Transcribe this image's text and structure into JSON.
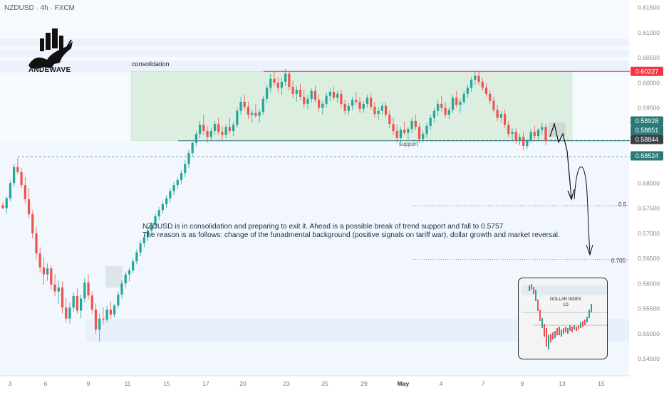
{
  "header": {
    "symbol": "NZDUSD · 4h · FXCM"
  },
  "logo": {
    "text": "ANDEWAVE"
  },
  "labels": {
    "consolidation": "consolidation",
    "support": "support",
    "fib_half": "0.5",
    "fib_705": "0.705"
  },
  "note": {
    "line1": "NZDUSD is in consolidation and preparing to exit it. Ahead is a possible break of trend support and fall to 0.5757",
    "line2": "The reason is as follows: change of the funadmental background (positive signals on tariff war), dollar growth and market reversal."
  },
  "inset": {
    "title_line1": "DOLLAR INDEX",
    "title_line2": "1D"
  },
  "colors": {
    "bull": "#26a69a",
    "bear": "#ef5350",
    "resistance": "#f23645",
    "support": "#2b7a78",
    "zone": "#c8e6c9",
    "band": "#d6e4f5"
  },
  "chart_data": {
    "type": "candlestick",
    "symbol": "NZDUSD",
    "timeframe": "4h",
    "x_ticks": [
      "3",
      "6",
      "9",
      "11",
      "15",
      "17",
      "20",
      "23",
      "25",
      "29",
      "May",
      "4",
      "7",
      "9",
      "13",
      "15"
    ],
    "y_ticks": [
      0.615,
      0.61,
      0.605,
      0.6,
      0.595,
      0.59,
      0.585,
      0.58,
      0.575,
      0.57,
      0.565,
      0.56,
      0.555,
      0.55,
      0.545
    ],
    "ylim": [
      0.5435,
      0.6168
    ],
    "price_tags": [
      {
        "value": "0.60227",
        "style": "resistance"
      },
      {
        "value": "0.58928",
        "style": "current"
      },
      {
        "value": "0.58851",
        "style": "current"
      },
      {
        "value": "0.58844",
        "style": "dark"
      },
      {
        "value": "0.58524",
        "style": "current"
      }
    ],
    "levels": {
      "resistance": 0.60227,
      "support": 0.58844,
      "dashed": [
        0.58851,
        0.58524
      ],
      "fib_0_5": 0.5755,
      "fib_0_705": 0.5648
    },
    "consolidation_zone": [
      0.58844,
      0.60227
    ],
    "target": 0.5757,
    "candles": [
      [
        0.5756,
        0.5762,
        0.5748,
        0.575
      ],
      [
        0.575,
        0.5774,
        0.574,
        0.577
      ],
      [
        0.577,
        0.5805,
        0.5764,
        0.58
      ],
      [
        0.58,
        0.5838,
        0.5792,
        0.5832
      ],
      [
        0.5832,
        0.585,
        0.5818,
        0.5822
      ],
      [
        0.5822,
        0.583,
        0.579,
        0.5796
      ],
      [
        0.5796,
        0.5812,
        0.576,
        0.5768
      ],
      [
        0.5768,
        0.579,
        0.573,
        0.5738
      ],
      [
        0.5738,
        0.5746,
        0.569,
        0.57
      ],
      [
        0.57,
        0.5712,
        0.5648,
        0.566
      ],
      [
        0.566,
        0.5672,
        0.5622,
        0.5632
      ],
      [
        0.5632,
        0.5652,
        0.5598,
        0.5618
      ],
      [
        0.5618,
        0.564,
        0.5605,
        0.563
      ],
      [
        0.563,
        0.5636,
        0.5588,
        0.5598
      ],
      [
        0.5598,
        0.5618,
        0.5575,
        0.5584
      ],
      [
        0.5584,
        0.5606,
        0.556,
        0.5592
      ],
      [
        0.5592,
        0.5604,
        0.554,
        0.5552
      ],
      [
        0.5552,
        0.5572,
        0.5522,
        0.553
      ],
      [
        0.553,
        0.5562,
        0.552,
        0.5552
      ],
      [
        0.5552,
        0.5582,
        0.5544,
        0.5575
      ],
      [
        0.5575,
        0.559,
        0.554,
        0.5546
      ],
      [
        0.5546,
        0.5578,
        0.553,
        0.557
      ],
      [
        0.557,
        0.561,
        0.5562,
        0.5602
      ],
      [
        0.5602,
        0.5618,
        0.5568,
        0.5576
      ],
      [
        0.5576,
        0.5584,
        0.554,
        0.5548
      ],
      [
        0.5548,
        0.556,
        0.55,
        0.5508
      ],
      [
        0.5508,
        0.554,
        0.5484,
        0.553
      ],
      [
        0.553,
        0.5552,
        0.5518,
        0.5528
      ],
      [
        0.5528,
        0.5556,
        0.5522,
        0.5548
      ],
      [
        0.5548,
        0.5564,
        0.553,
        0.5538
      ],
      [
        0.5538,
        0.556,
        0.5532,
        0.5556
      ],
      [
        0.5556,
        0.5584,
        0.555,
        0.5578
      ],
      [
        0.5578,
        0.5606,
        0.557,
        0.56
      ],
      [
        0.56,
        0.5624,
        0.5592,
        0.5618
      ],
      [
        0.5618,
        0.5632,
        0.5604,
        0.5626
      ],
      [
        0.5626,
        0.565,
        0.562,
        0.5644
      ],
      [
        0.5644,
        0.5668,
        0.5638,
        0.5662
      ],
      [
        0.5662,
        0.5686,
        0.5654,
        0.568
      ],
      [
        0.568,
        0.5698,
        0.5672,
        0.5692
      ],
      [
        0.5692,
        0.5712,
        0.5684,
        0.5706
      ],
      [
        0.5706,
        0.5722,
        0.5698,
        0.5716
      ],
      [
        0.5716,
        0.574,
        0.5708,
        0.5734
      ],
      [
        0.5734,
        0.5752,
        0.5726,
        0.5746
      ],
      [
        0.5746,
        0.5764,
        0.5738,
        0.5758
      ],
      [
        0.5758,
        0.5776,
        0.575,
        0.577
      ],
      [
        0.577,
        0.579,
        0.5762,
        0.5784
      ],
      [
        0.5784,
        0.5802,
        0.5776,
        0.5796
      ],
      [
        0.5796,
        0.5812,
        0.5788,
        0.5806
      ],
      [
        0.5806,
        0.5826,
        0.5798,
        0.582
      ],
      [
        0.582,
        0.5846,
        0.5812,
        0.5838
      ],
      [
        0.5838,
        0.5866,
        0.583,
        0.586
      ],
      [
        0.586,
        0.5886,
        0.5852,
        0.588
      ],
      [
        0.588,
        0.5904,
        0.5874,
        0.5898
      ],
      [
        0.5898,
        0.5924,
        0.589,
        0.5916
      ],
      [
        0.5916,
        0.5936,
        0.5896,
        0.5904
      ],
      [
        0.5904,
        0.5914,
        0.588,
        0.5892
      ],
      [
        0.5892,
        0.591,
        0.5884,
        0.5904
      ],
      [
        0.5904,
        0.5924,
        0.5896,
        0.5918
      ],
      [
        0.5918,
        0.593,
        0.5896,
        0.5902
      ],
      [
        0.5902,
        0.5914,
        0.5886,
        0.5896
      ],
      [
        0.5896,
        0.5918,
        0.589,
        0.5912
      ],
      [
        0.5912,
        0.593,
        0.5898,
        0.5904
      ],
      [
        0.5904,
        0.5922,
        0.5894,
        0.5916
      ],
      [
        0.5916,
        0.595,
        0.591,
        0.5944
      ],
      [
        0.5944,
        0.5972,
        0.5936,
        0.5962
      ],
      [
        0.5962,
        0.5976,
        0.5946,
        0.5952
      ],
      [
        0.5952,
        0.5962,
        0.5928,
        0.5936
      ],
      [
        0.5936,
        0.5946,
        0.592,
        0.594
      ],
      [
        0.594,
        0.5958,
        0.593,
        0.5934
      ],
      [
        0.5934,
        0.5946,
        0.592,
        0.5942
      ],
      [
        0.5942,
        0.5974,
        0.5936,
        0.5968
      ],
      [
        0.5968,
        0.5996,
        0.596,
        0.599
      ],
      [
        0.599,
        0.6018,
        0.598,
        0.6008
      ],
      [
        0.6008,
        0.6022,
        0.5994,
        0.6
      ],
      [
        0.6,
        0.6012,
        0.598,
        0.599
      ],
      [
        0.599,
        0.601,
        0.5976,
        0.6002
      ],
      [
        0.6002,
        0.6028,
        0.5994,
        0.6018
      ],
      [
        0.6018,
        0.6024,
        0.5984,
        0.5992
      ],
      [
        0.5992,
        0.6004,
        0.597,
        0.5978
      ],
      [
        0.5978,
        0.5994,
        0.5962,
        0.5986
      ],
      [
        0.5986,
        0.5998,
        0.5966,
        0.5972
      ],
      [
        0.5972,
        0.5986,
        0.595,
        0.5958
      ],
      [
        0.5958,
        0.5976,
        0.5948,
        0.5968
      ],
      [
        0.5968,
        0.599,
        0.596,
        0.5984
      ],
      [
        0.5984,
        0.5994,
        0.596,
        0.5966
      ],
      [
        0.5966,
        0.5976,
        0.5942,
        0.595
      ],
      [
        0.595,
        0.5964,
        0.5936,
        0.5958
      ],
      [
        0.5958,
        0.598,
        0.595,
        0.5974
      ],
      [
        0.5974,
        0.5988,
        0.5964,
        0.5982
      ],
      [
        0.5982,
        0.5992,
        0.5966,
        0.597
      ],
      [
        0.597,
        0.5984,
        0.596,
        0.5978
      ],
      [
        0.5978,
        0.5986,
        0.595,
        0.5958
      ],
      [
        0.5958,
        0.5966,
        0.5936,
        0.5944
      ],
      [
        0.5944,
        0.596,
        0.5936,
        0.5954
      ],
      [
        0.5954,
        0.5972,
        0.5946,
        0.5966
      ],
      [
        0.5966,
        0.5982,
        0.5956,
        0.5962
      ],
      [
        0.5962,
        0.5972,
        0.594,
        0.5948
      ],
      [
        0.5948,
        0.5964,
        0.594,
        0.5958
      ],
      [
        0.5958,
        0.5976,
        0.595,
        0.597
      ],
      [
        0.597,
        0.598,
        0.5946,
        0.5952
      ],
      [
        0.5952,
        0.5962,
        0.593,
        0.5938
      ],
      [
        0.5938,
        0.5952,
        0.5926,
        0.5944
      ],
      [
        0.5944,
        0.596,
        0.5936,
        0.5954
      ],
      [
        0.5954,
        0.5962,
        0.593,
        0.5936
      ],
      [
        0.5936,
        0.5944,
        0.591,
        0.5918
      ],
      [
        0.5918,
        0.593,
        0.5896,
        0.5904
      ],
      [
        0.5904,
        0.5916,
        0.588,
        0.589
      ],
      [
        0.589,
        0.5912,
        0.588,
        0.5906
      ],
      [
        0.5906,
        0.5922,
        0.5896,
        0.59
      ],
      [
        0.59,
        0.5912,
        0.5886,
        0.5908
      ],
      [
        0.5908,
        0.593,
        0.59,
        0.5924
      ],
      [
        0.5924,
        0.5936,
        0.5906,
        0.5912
      ],
      [
        0.5912,
        0.592,
        0.588,
        0.5888
      ],
      [
        0.5888,
        0.5904,
        0.5882,
        0.5898
      ],
      [
        0.5898,
        0.592,
        0.589,
        0.5914
      ],
      [
        0.5914,
        0.5936,
        0.5906,
        0.593
      ],
      [
        0.593,
        0.595,
        0.592,
        0.5944
      ],
      [
        0.5944,
        0.5966,
        0.5934,
        0.5958
      ],
      [
        0.5958,
        0.5974,
        0.5942,
        0.595
      ],
      [
        0.595,
        0.5962,
        0.593,
        0.5936
      ],
      [
        0.5936,
        0.5952,
        0.5928,
        0.5946
      ],
      [
        0.5946,
        0.5976,
        0.594,
        0.597
      ],
      [
        0.597,
        0.5984,
        0.595,
        0.5956
      ],
      [
        0.5956,
        0.5968,
        0.594,
        0.5962
      ],
      [
        0.5962,
        0.5984,
        0.5956,
        0.5978
      ],
      [
        0.5978,
        0.5996,
        0.597,
        0.599
      ],
      [
        0.599,
        0.6012,
        0.5982,
        0.6006
      ],
      [
        0.6006,
        0.6024,
        0.5996,
        0.6014
      ],
      [
        0.6014,
        0.6022,
        0.5996,
        0.6002
      ],
      [
        0.6002,
        0.601,
        0.5984,
        0.599
      ],
      [
        0.599,
        0.5998,
        0.5972,
        0.5978
      ],
      [
        0.5978,
        0.5986,
        0.5958,
        0.5964
      ],
      [
        0.5964,
        0.5972,
        0.594,
        0.5946
      ],
      [
        0.5946,
        0.5956,
        0.5924,
        0.593
      ],
      [
        0.593,
        0.5944,
        0.592,
        0.5938
      ],
      [
        0.5938,
        0.5946,
        0.591,
        0.5916
      ],
      [
        0.5916,
        0.5924,
        0.5892,
        0.5898
      ],
      [
        0.5898,
        0.591,
        0.5884,
        0.5902
      ],
      [
        0.5902,
        0.591,
        0.5878,
        0.5884
      ],
      [
        0.5884,
        0.5898,
        0.5876,
        0.5892
      ],
      [
        0.5892,
        0.5902,
        0.5866,
        0.5874
      ],
      [
        0.5874,
        0.5888,
        0.5868,
        0.5886
      ],
      [
        0.5886,
        0.5908,
        0.588,
        0.5902
      ],
      [
        0.5902,
        0.5914,
        0.5888,
        0.5894
      ],
      [
        0.5894,
        0.591,
        0.5886,
        0.5906
      ],
      [
        0.5906,
        0.592,
        0.5896,
        0.5912
      ],
      [
        0.5912,
        0.5918,
        0.5876,
        0.5884
      ]
    ]
  }
}
